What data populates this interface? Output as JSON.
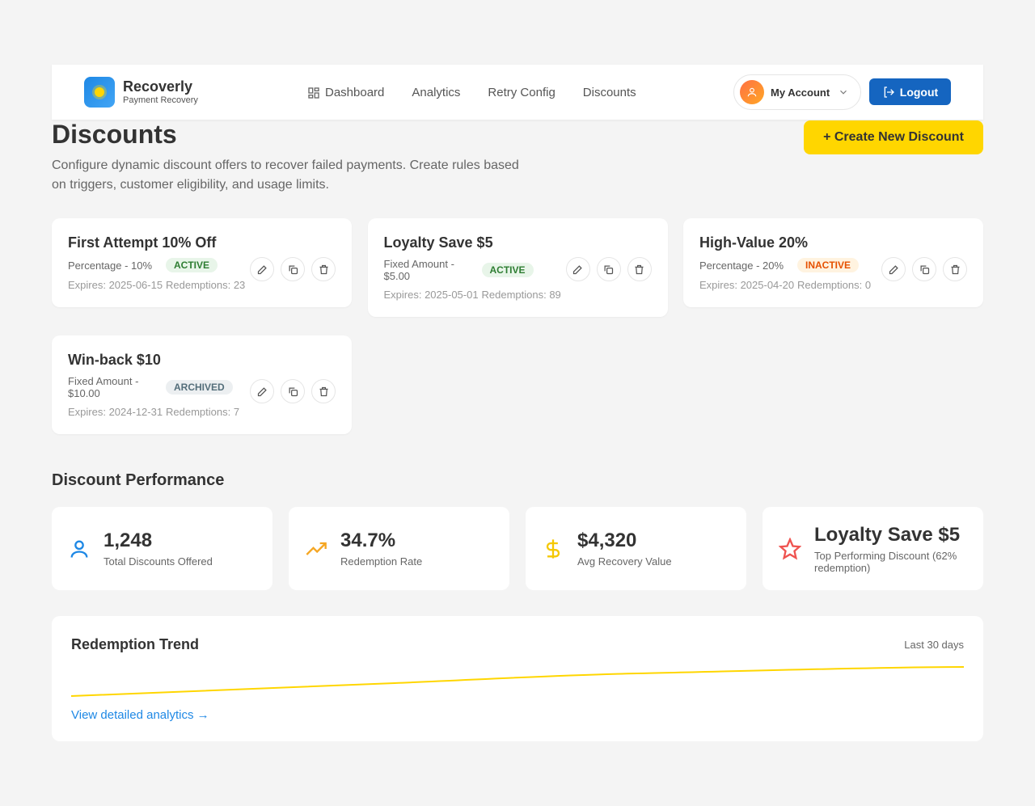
{
  "header": {
    "brand": "Recoverly",
    "tagline": "Payment Recovery",
    "nav": [
      "Dashboard",
      "Analytics",
      "Retry Config",
      "Discounts"
    ],
    "account": "My Account",
    "logout": "Logout"
  },
  "page": {
    "title": "Discounts",
    "description": "Configure dynamic discount offers to recover failed payments. Create rules based on triggers, customer eligibility, and usage limits.",
    "create_button": "+ Create New Discount"
  },
  "discounts": [
    {
      "name": "First Attempt 10% Off",
      "type": "Percentage - 10%",
      "status": "ACTIVE",
      "badge_color": "#2e7d32",
      "badge_bg": "#e8f5e9",
      "expires": "Expires: 2025-06-15",
      "redemptions": "Redemptions: 23"
    },
    {
      "name": "Loyalty Save $5",
      "type": "Fixed Amount - $5.00",
      "status": "ACTIVE",
      "badge_color": "#2e7d32",
      "badge_bg": "#e8f5e9",
      "expires": "Expires: 2025-05-01",
      "redemptions": "Redemptions: 89"
    },
    {
      "name": "High-Value 20%",
      "type": "Percentage - 20%",
      "status": "INACTIVE",
      "badge_color": "#e65100",
      "badge_bg": "#fff3e0",
      "expires": "Expires: 2025-04-20",
      "redemptions": "Redemptions: 0"
    },
    {
      "name": "Win-back $10",
      "type": "Fixed Amount - $10.00",
      "status": "ARCHIVED",
      "badge_color": "#546e7a",
      "badge_bg": "#eceff1",
      "expires": "Expires: 2024-12-31",
      "redemptions": "Redemptions: 7"
    }
  ],
  "performance": {
    "title": "Discount Performance",
    "stats": [
      {
        "value": "1,248",
        "label": "Total Discounts Offered",
        "icon_color": "#1e88e5"
      },
      {
        "value": "34.7%",
        "label": "Redemption Rate",
        "icon_color": "#f5a623"
      },
      {
        "value": "$4,320",
        "label": "Avg Recovery Value",
        "icon_color": "#f5c800"
      },
      {
        "value": "Loyalty Save $5",
        "label": "Top Performing Discount (62% redemption)",
        "icon_color": "#ef5350"
      }
    ]
  },
  "trend": {
    "title": "Redemption Trend",
    "range": "Last 30 days",
    "link": "View detailed analytics →"
  }
}
